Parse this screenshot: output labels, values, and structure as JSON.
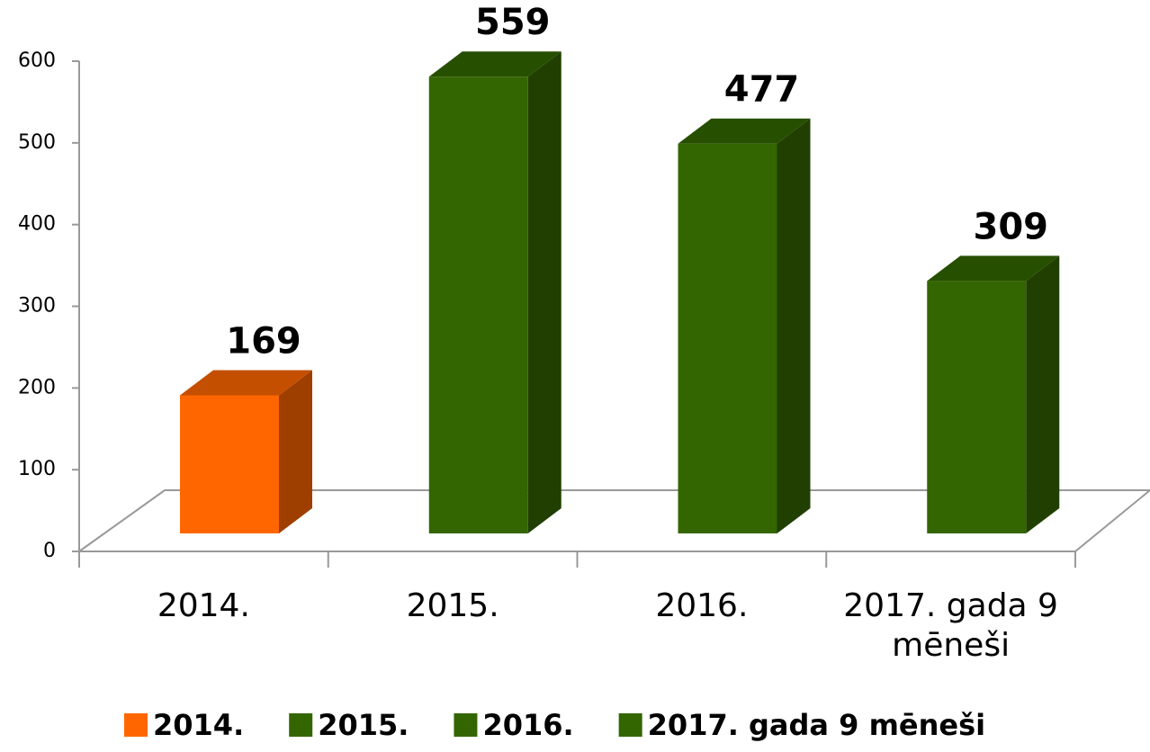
{
  "chart_data": {
    "type": "bar3d",
    "categories": [
      "2014.",
      "2015.",
      "2016.",
      "2017. gada 9 mēneši"
    ],
    "series": [
      {
        "name": "2014.",
        "color": "#ff6600",
        "values": [
          169,
          null,
          null,
          null
        ]
      },
      {
        "name": "2015.",
        "color": "#336600",
        "values": [
          null,
          559,
          null,
          null
        ]
      },
      {
        "name": "2016.",
        "color": "#336600",
        "values": [
          null,
          null,
          477,
          null
        ]
      },
      {
        "name": "2017. gada 9 mēneši",
        "color": "#336600",
        "values": [
          null,
          null,
          null,
          309
        ]
      }
    ],
    "ylim": [
      0,
      600
    ],
    "yticks": [
      0,
      100,
      200,
      300,
      400,
      500,
      600
    ],
    "legend": "bottom"
  }
}
